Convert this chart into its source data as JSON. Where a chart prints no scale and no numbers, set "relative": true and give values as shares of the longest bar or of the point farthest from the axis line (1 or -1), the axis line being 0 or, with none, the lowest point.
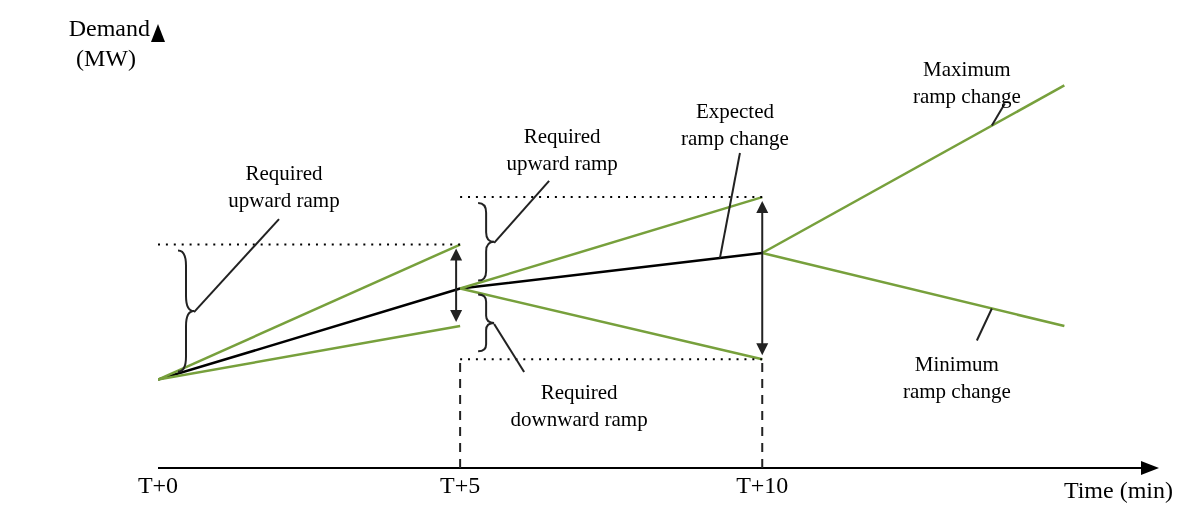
{
  "chart_data": {
    "type": "line",
    "relative": true,
    "xlabel": "Time (min)",
    "ylabel": "Demand (MW)",
    "categories": [
      "T+0",
      "T+5",
      "T+10",
      null
    ],
    "grid": false,
    "marker": "none",
    "line_style": "solid",
    "series": [
      {
        "color": "#000000",
        "values": [
          0.231,
          0.469,
          0.562,
          null
        ]
      },
      {
        "color": "#77a03c",
        "values": [
          0.231,
          0.584,
          null,
          null
        ]
      },
      {
        "color": "#77a03c",
        "values": [
          0.231,
          0.371,
          null,
          null
        ]
      },
      {
        "color": "#77a03c",
        "values": [
          null,
          0.469,
          0.708,
          null
        ]
      },
      {
        "color": "#77a03c",
        "values": [
          null,
          0.469,
          0.284,
          null
        ]
      },
      {
        "color": "#77a03c",
        "values": [
          null,
          null,
          0.562,
          1
        ]
      },
      {
        "color": "#77a03c",
        "values": [
          null,
          null,
          0.562,
          0.371
        ]
      },
      {
        "color": "#000000",
        "line_style": "dotted",
        "values": [
          0.584,
          0.584,
          null,
          null
        ]
      },
      {
        "color": "#000000",
        "line_style": "dotted",
        "values": [
          null,
          0.708,
          0.708,
          null
        ]
      },
      {
        "color": "#000000",
        "line_style": "dotted",
        "values": [
          null,
          0.284,
          0.284,
          null
        ]
      }
    ],
    "annotations": [
      "Required upward ramp",
      "Required upward ramp",
      "Required downward ramp",
      "Expected ramp change",
      "Maximum ramp change",
      "Minimum ramp change"
    ]
  }
}
